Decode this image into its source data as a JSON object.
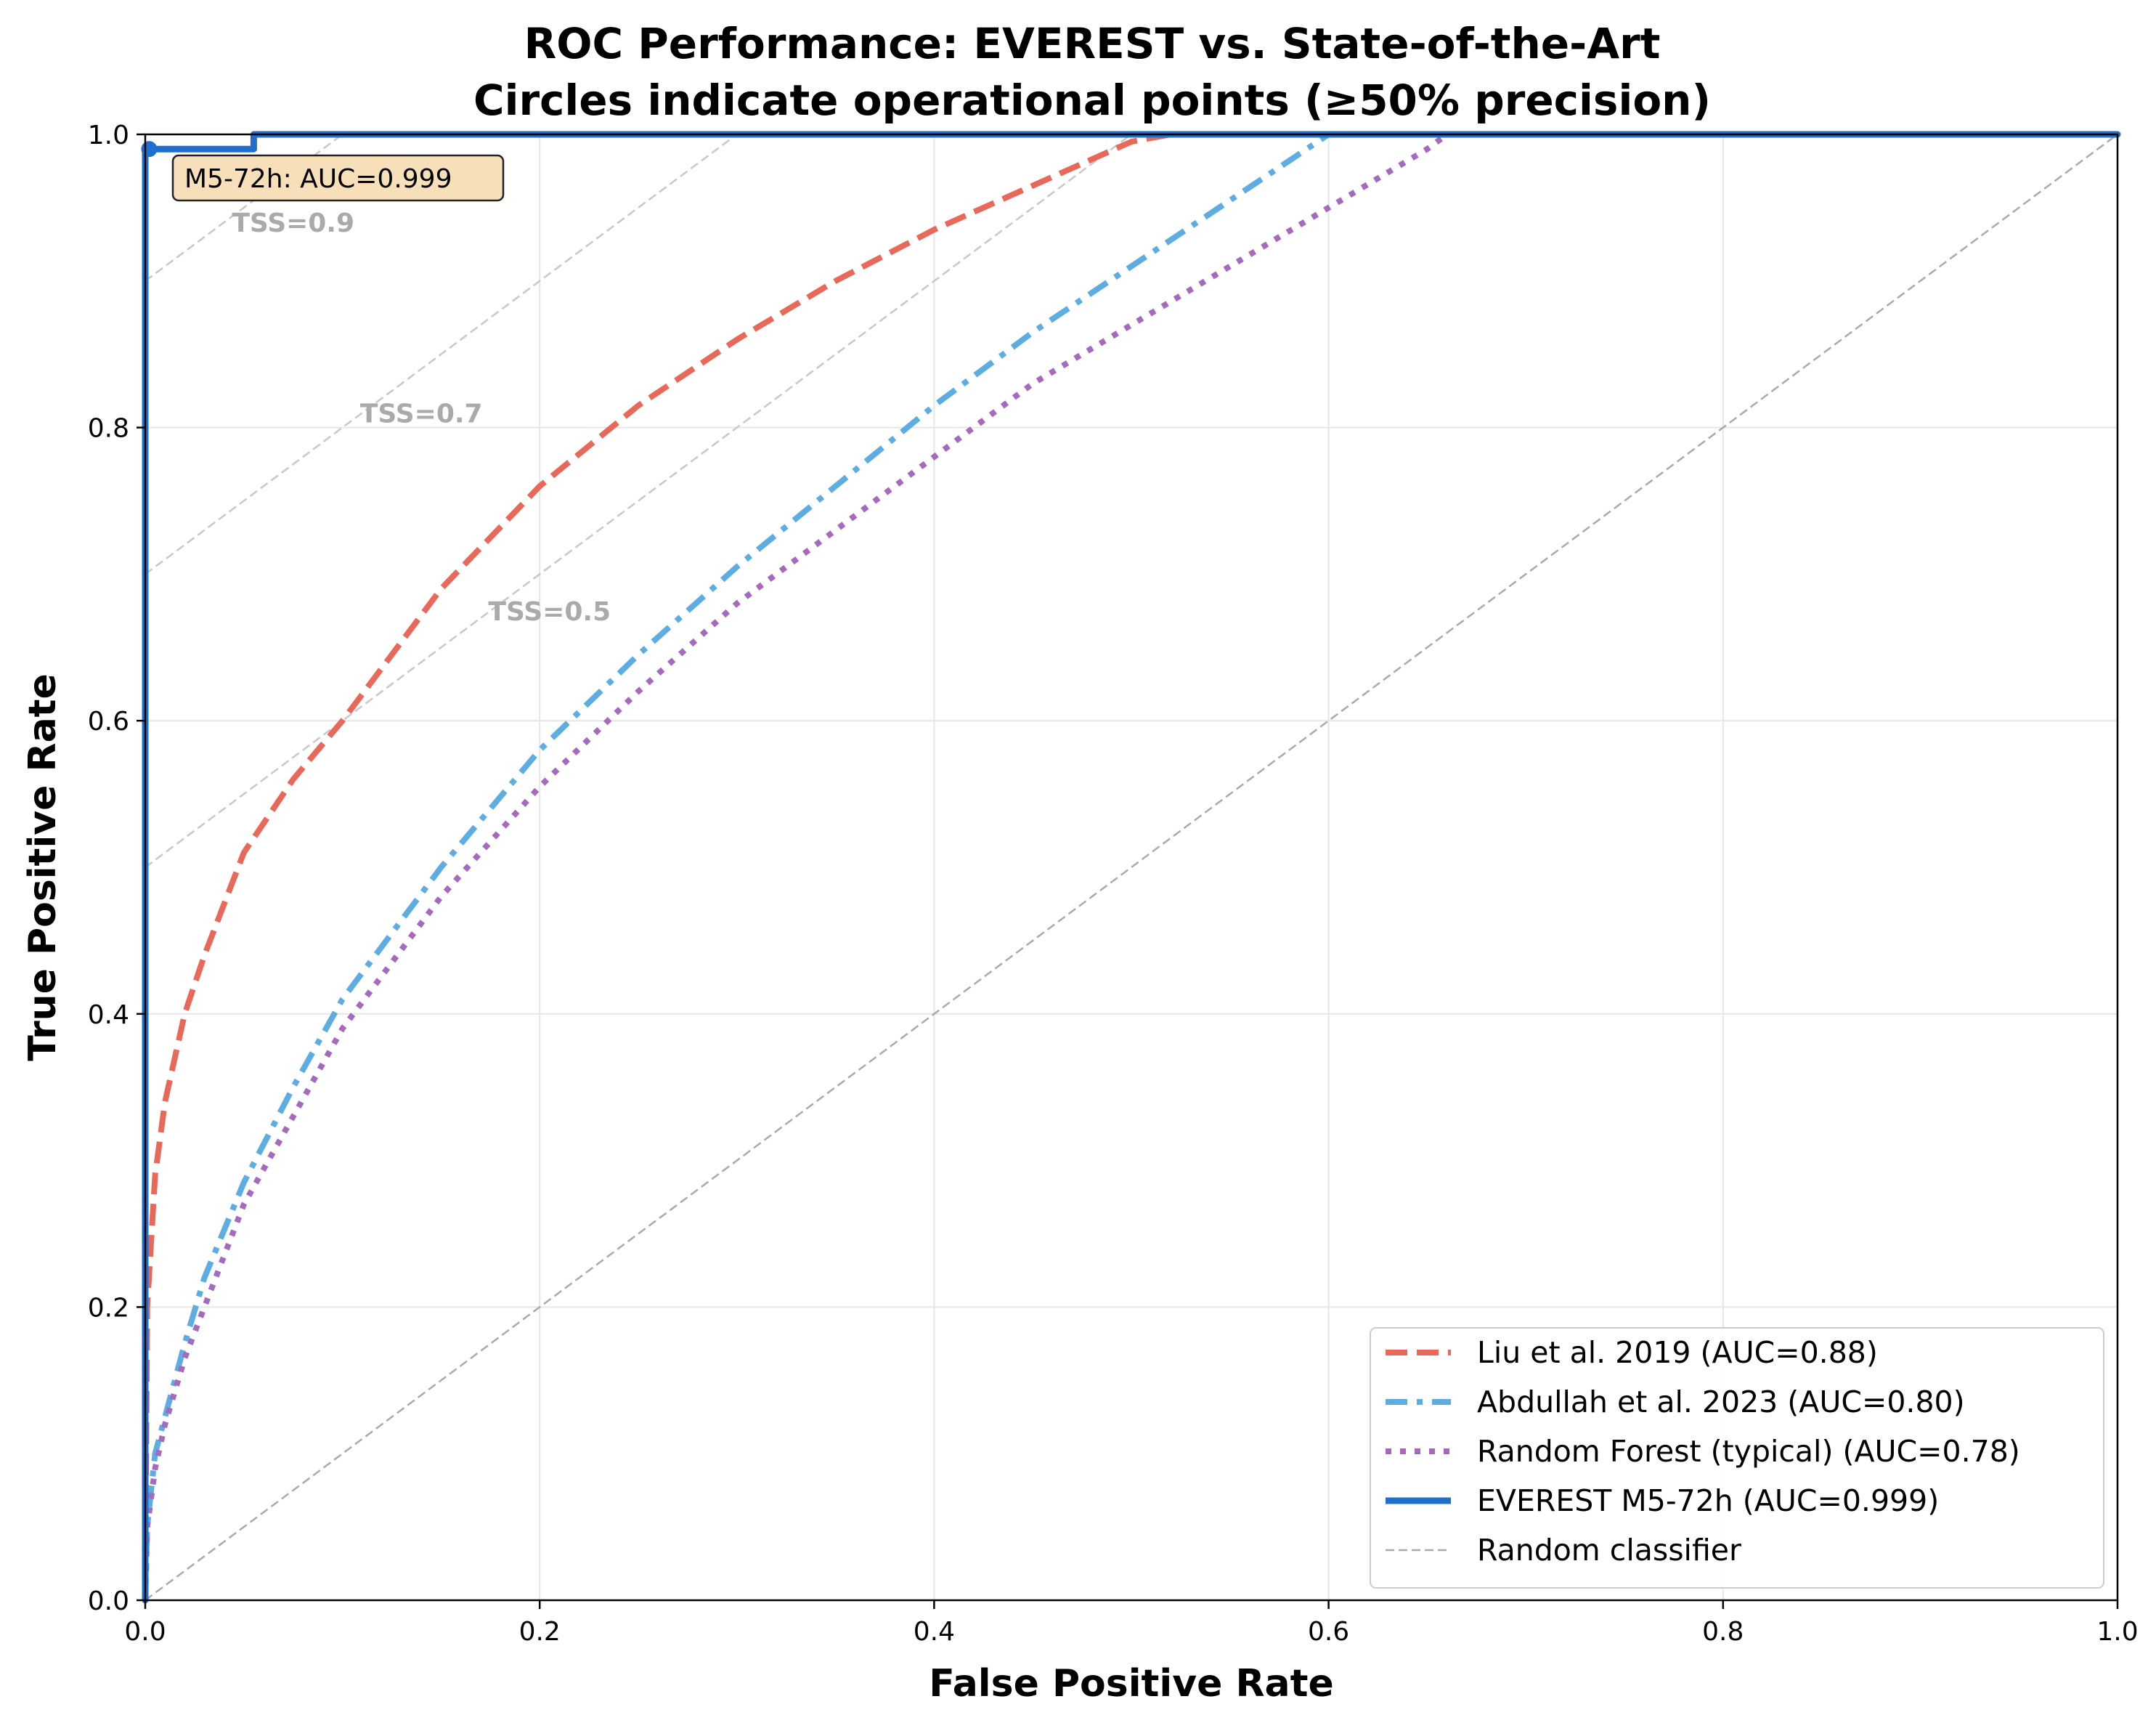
{
  "chart_data": {
    "type": "line",
    "title_line1": "ROC Performance: EVEREST vs. State-of-the-Art",
    "title_line2": "Circles indicate operational points (≥50% precision)",
    "xlabel": "False Positive Rate",
    "ylabel": "True Positive Rate",
    "xlim": [
      0,
      1
    ],
    "ylim": [
      0,
      1
    ],
    "x_ticks": [
      "0.0",
      "0.2",
      "0.4",
      "0.6",
      "0.8",
      "1.0"
    ],
    "y_ticks": [
      "0.0",
      "0.2",
      "0.4",
      "0.6",
      "0.8",
      "1.0"
    ],
    "grid": true,
    "legend_position": "lower-right",
    "series": [
      {
        "name": "Liu et al. 2019 (AUC=0.88)",
        "color": "#e8685a",
        "style": "dashed",
        "x": [
          0,
          0.001,
          0.005,
          0.01,
          0.02,
          0.03,
          0.05,
          0.075,
          0.1,
          0.15,
          0.2,
          0.25,
          0.3,
          0.35,
          0.4,
          0.45,
          0.5,
          0.52,
          1.0
        ],
        "y": [
          0,
          0.2,
          0.29,
          0.34,
          0.4,
          0.44,
          0.51,
          0.56,
          0.6,
          0.69,
          0.76,
          0.815,
          0.86,
          0.9,
          0.935,
          0.965,
          0.995,
          1.0,
          1.0
        ]
      },
      {
        "name": "Abdullah et al. 2023 (AUC=0.80)",
        "color": "#5dade2",
        "style": "dashdot",
        "x": [
          0,
          0.001,
          0.005,
          0.01,
          0.02,
          0.03,
          0.05,
          0.075,
          0.1,
          0.15,
          0.2,
          0.25,
          0.3,
          0.35,
          0.4,
          0.45,
          0.5,
          0.55,
          0.6,
          1.0
        ],
        "y": [
          0,
          0.05,
          0.1,
          0.125,
          0.175,
          0.22,
          0.285,
          0.35,
          0.41,
          0.5,
          0.58,
          0.645,
          0.705,
          0.76,
          0.815,
          0.865,
          0.91,
          0.955,
          1.0,
          1.0
        ]
      },
      {
        "name": "Random Forest (typical) (AUC=0.78)",
        "color": "#a569bd",
        "style": "dotted",
        "x": [
          0,
          0.001,
          0.005,
          0.01,
          0.02,
          0.03,
          0.05,
          0.075,
          0.1,
          0.15,
          0.2,
          0.25,
          0.3,
          0.35,
          0.4,
          0.45,
          0.5,
          0.55,
          0.6,
          0.65,
          0.66,
          1.0
        ],
        "y": [
          0,
          0.05,
          0.09,
          0.12,
          0.165,
          0.2,
          0.27,
          0.33,
          0.39,
          0.48,
          0.555,
          0.62,
          0.68,
          0.73,
          0.78,
          0.83,
          0.87,
          0.91,
          0.95,
          0.99,
          1.0,
          1.0
        ]
      },
      {
        "name": "EVEREST M5-72h (AUC=0.999)",
        "color": "#1f6fce",
        "style": "solid",
        "x": [
          0,
          0,
          0.001,
          0.055,
          0.055,
          1.0
        ],
        "y": [
          0,
          0.99,
          0.99,
          0.99,
          1.0,
          1.0
        ]
      },
      {
        "name": "Random classifier",
        "color": "#aaaaaa",
        "style": "thin-dashed",
        "x": [
          0,
          1
        ],
        "y": [
          0,
          1
        ]
      }
    ],
    "operational_points": [
      {
        "series": "EVEREST M5-72h (AUC=0.999)",
        "x": 0.002,
        "y": 0.99
      }
    ],
    "tss_isolines": [
      {
        "label": "TSS=0.9",
        "value": 0.9,
        "label_x": 0.075,
        "label_y": 0.94
      },
      {
        "label": "TSS=0.7",
        "value": 0.7,
        "label_x": 0.14,
        "label_y": 0.81
      },
      {
        "label": "TSS=0.5",
        "value": 0.5,
        "label_x": 0.205,
        "label_y": 0.675
      }
    ],
    "annotation": {
      "text": "M5-72h: AUC=0.999",
      "x": 0.018,
      "y": 0.97
    }
  }
}
